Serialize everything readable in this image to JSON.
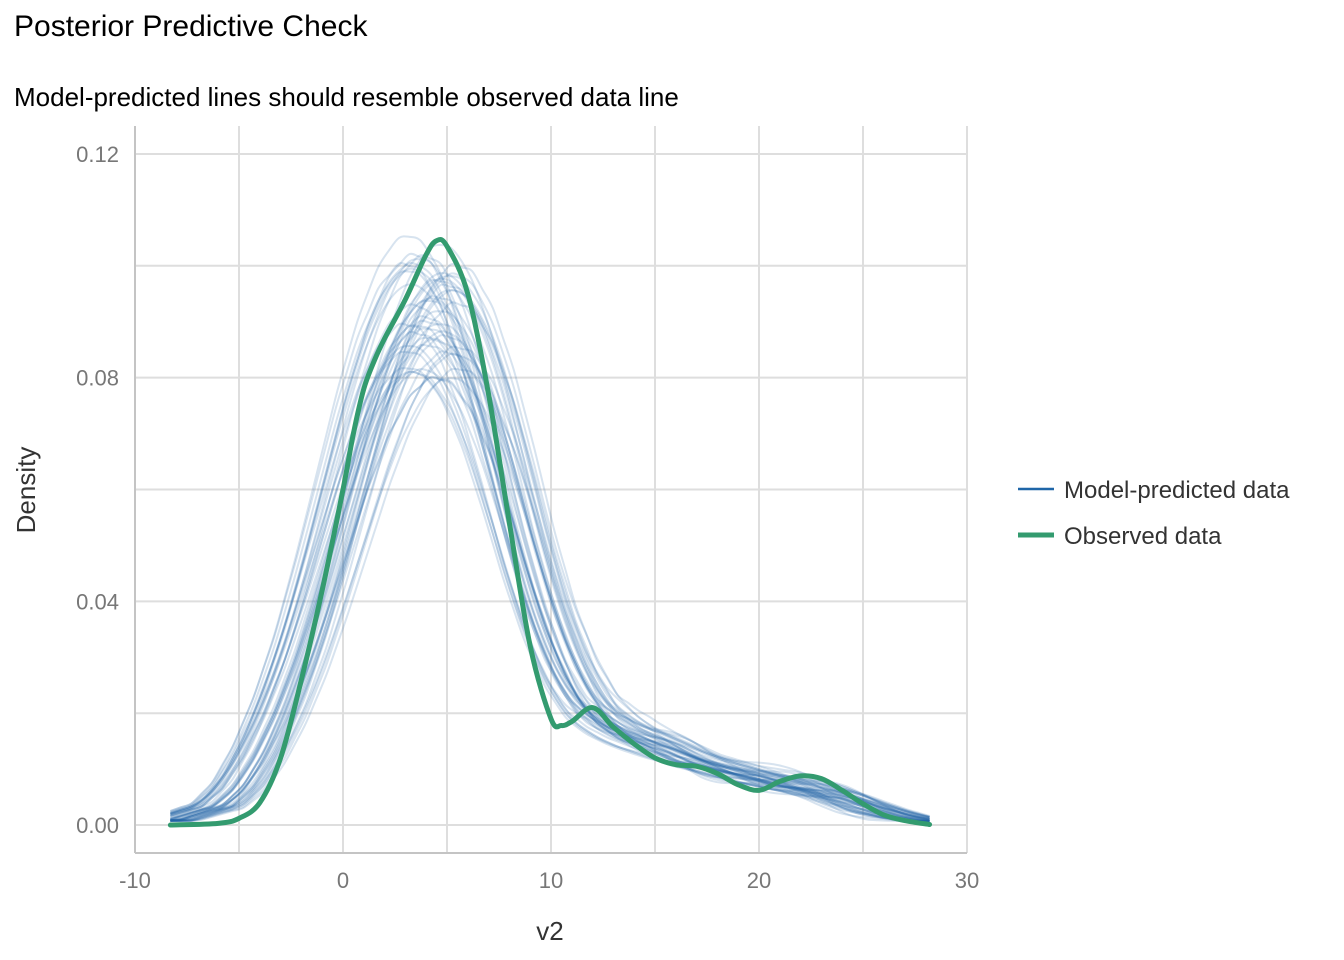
{
  "chart": {
    "title": "Posterior Predictive Check",
    "subtitle": "Model-predicted lines should resemble observed data line"
  },
  "colors": {
    "predicted": "#1f66a8",
    "observed": "#339b6f",
    "grid": "#dedede",
    "axis": "#c4c4c4"
  },
  "chart_data": {
    "type": "line",
    "title": "Posterior Predictive Check",
    "subtitle": "Model-predicted lines should resemble observed data line",
    "xlabel": "v2",
    "ylabel": "Density",
    "xlim": [
      -10,
      30
    ],
    "ylim": [
      -0.005,
      0.125
    ],
    "x_ticks": [
      "-10",
      "0",
      "10",
      "20",
      "30"
    ],
    "y_ticks": [
      "0.00",
      "0.04",
      "0.08",
      "0.12"
    ],
    "grid": true,
    "legend_position": "right",
    "legend": [
      "Model-predicted data",
      "Observed data"
    ],
    "series": [
      {
        "name": "Observed data",
        "x": [
          -8.3,
          -6,
          -5,
          -4,
          -3,
          -2,
          -1,
          0,
          0.5,
          1,
          1.5,
          2,
          3,
          4,
          4.5,
          5,
          6,
          7,
          8,
          9,
          10,
          10.5,
          11,
          12,
          13,
          14,
          15,
          16,
          17,
          18,
          19,
          20,
          21,
          22,
          23,
          24,
          25,
          26,
          27,
          28.2
        ],
        "y": [
          0,
          0.0003,
          0.0012,
          0.004,
          0.012,
          0.026,
          0.042,
          0.06,
          0.07,
          0.078,
          0.083,
          0.087,
          0.094,
          0.102,
          0.1045,
          0.1035,
          0.095,
          0.077,
          0.054,
          0.032,
          0.019,
          0.0178,
          0.0185,
          0.021,
          0.0175,
          0.0145,
          0.012,
          0.0108,
          0.0105,
          0.0092,
          0.0072,
          0.0062,
          0.0078,
          0.0088,
          0.0083,
          0.0062,
          0.0038,
          0.0018,
          0.0008,
          0.0001
        ]
      },
      {
        "name": "Model-predicted data",
        "x": [
          -8.3,
          -6,
          -5,
          -4,
          -3,
          -2,
          -1,
          0,
          1,
          2,
          3,
          4,
          5,
          6,
          7,
          8,
          9,
          10,
          11,
          12,
          13,
          14,
          15,
          16,
          17,
          18,
          19,
          20,
          21,
          22,
          23,
          24,
          25,
          26,
          27,
          28.2
        ],
        "y": [
          0.0008,
          0.0035,
          0.007,
          0.013,
          0.021,
          0.031,
          0.043,
          0.056,
          0.069,
          0.08,
          0.088,
          0.092,
          0.091,
          0.085,
          0.075,
          0.062,
          0.048,
          0.036,
          0.027,
          0.021,
          0.018,
          0.016,
          0.0145,
          0.013,
          0.0115,
          0.0105,
          0.0095,
          0.0085,
          0.0078,
          0.007,
          0.0062,
          0.005,
          0.0037,
          0.0025,
          0.0015,
          0.0007
        ]
      }
    ]
  }
}
